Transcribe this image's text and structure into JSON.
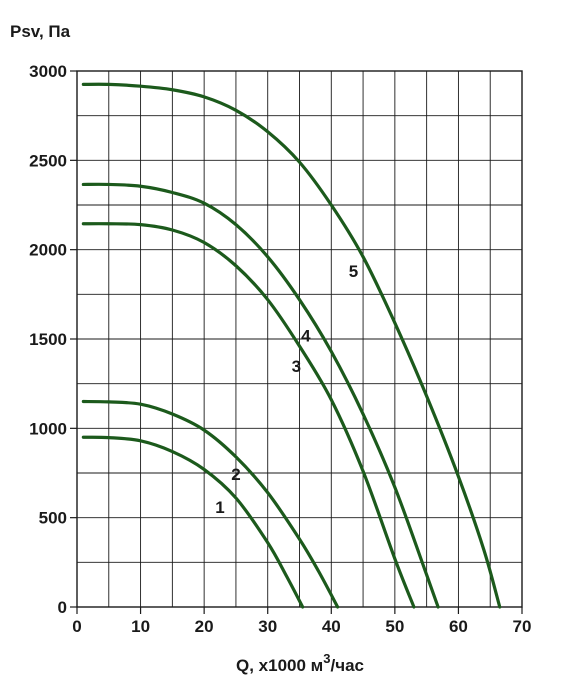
{
  "chart_data": {
    "type": "line",
    "title": "",
    "ylabel": "Psv, Па",
    "xlabel_main": "Q, x1000 м",
    "xlabel_sup": "3",
    "xlabel_tail": "/час",
    "xlim": [
      0,
      70
    ],
    "ylim": [
      0,
      3000
    ],
    "xticks": [
      0,
      10,
      20,
      30,
      40,
      50,
      60,
      70
    ],
    "yticks": [
      0,
      500,
      1000,
      1500,
      2000,
      2500,
      3000
    ],
    "xtick_labels": [
      "0",
      "10",
      "20",
      "30",
      "40",
      "50",
      "60",
      "70"
    ],
    "ytick_labels": [
      "0",
      "500",
      "1000",
      "1500",
      "2000",
      "2500",
      "3000"
    ],
    "grid": true,
    "x_grid_step": 5,
    "y_grid_step": 250,
    "line_color": "#1c5a1c",
    "series": [
      {
        "label": "1",
        "label_x": 22.5,
        "label_y": 560,
        "x": [
          1,
          5,
          10,
          15,
          20,
          25,
          30,
          33,
          35.5
        ],
        "y": [
          950,
          948,
          930,
          870,
          770,
          610,
          360,
          170,
          0
        ]
      },
      {
        "label": "2",
        "label_x": 25,
        "label_y": 745,
        "x": [
          1,
          5,
          10,
          15,
          20,
          25,
          30,
          35,
          38,
          41
        ],
        "y": [
          1150,
          1148,
          1135,
          1080,
          990,
          840,
          640,
          380,
          200,
          0
        ]
      },
      {
        "label": "3",
        "label_x": 34.5,
        "label_y": 1350,
        "x": [
          1,
          5,
          10,
          15,
          20,
          25,
          30,
          35,
          40,
          45,
          50,
          53
        ],
        "y": [
          2145,
          2145,
          2140,
          2110,
          2040,
          1910,
          1720,
          1460,
          1160,
          760,
          270,
          0
        ]
      },
      {
        "label": "4",
        "label_x": 36,
        "label_y": 1520,
        "x": [
          1,
          5,
          10,
          15,
          20,
          25,
          30,
          35,
          40,
          45,
          50,
          55,
          56.8
        ],
        "y": [
          2365,
          2365,
          2355,
          2320,
          2260,
          2140,
          1960,
          1720,
          1430,
          1080,
          670,
          180,
          0
        ]
      },
      {
        "label": "5",
        "label_x": 43.5,
        "label_y": 1880,
        "x": [
          1,
          5,
          10,
          15,
          20,
          25,
          30,
          35,
          40,
          45,
          50,
          55,
          60,
          64,
          66.5
        ],
        "y": [
          2925,
          2925,
          2915,
          2895,
          2855,
          2780,
          2660,
          2490,
          2250,
          1960,
          1590,
          1180,
          730,
          320,
          0
        ]
      }
    ]
  }
}
